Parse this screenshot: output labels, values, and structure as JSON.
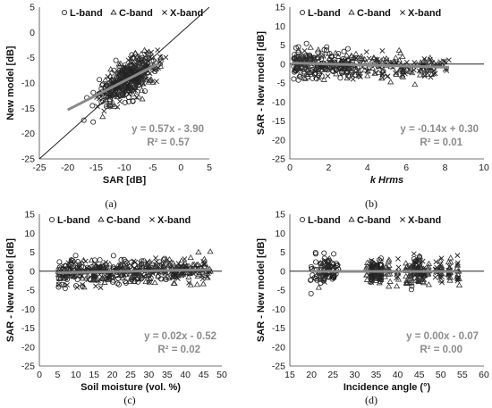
{
  "chart_data": [
    {
      "id": "a",
      "type": "scatter",
      "panel_label": "(a)",
      "xlabel": "SAR [dB]",
      "ylabel": "New model [dB]",
      "xlim": [
        -25,
        5
      ],
      "ylim": [
        -25,
        5
      ],
      "xticks": [
        -25,
        -20,
        -15,
        -10,
        -5,
        0,
        5
      ],
      "yticks": [
        -25,
        -20,
        -15,
        -10,
        -5,
        0,
        5
      ],
      "x_zero_line": false,
      "one_to_one_line": true,
      "legend": [
        "L-band",
        "C-band",
        "X-band"
      ],
      "legend_position": "top-right",
      "equation": "y = 0.57x - 3.90",
      "r_squared": "R² = 0.57",
      "trendline": {
        "slope": 0.57,
        "intercept": -3.9,
        "x_range": [
          -20,
          -4
        ]
      },
      "series": [
        {
          "name": "L-band",
          "marker": "circle",
          "x_center": -10,
          "x_spread": 5,
          "y_slope": 0.57,
          "y_intercept": -3.9,
          "noise": 2.0,
          "x_min": -21,
          "x_max": -3,
          "count": 150
        },
        {
          "name": "C-band",
          "marker": "triangle",
          "x_center": -9,
          "x_spread": 4.5,
          "y_slope": 0.57,
          "y_intercept": -3.9,
          "noise": 1.9,
          "x_min": -20,
          "x_max": -2,
          "count": 190
        },
        {
          "name": "X-band",
          "marker": "cross",
          "x_center": -9,
          "x_spread": 4.5,
          "y_slope": 0.57,
          "y_intercept": -3.9,
          "noise": 1.9,
          "x_min": -20,
          "x_max": -2,
          "count": 110
        }
      ]
    },
    {
      "id": "b",
      "type": "scatter",
      "panel_label": "(b)",
      "xlabel": "k Hrms",
      "xlabel_italic": true,
      "ylabel": "SAR - New model [dB]",
      "xlim": [
        0,
        10
      ],
      "ylim": [
        -25,
        15
      ],
      "xticks": [
        0,
        2,
        4,
        6,
        8,
        10
      ],
      "yticks": [
        -25,
        -20,
        -15,
        -10,
        -5,
        0,
        5,
        10,
        15
      ],
      "x_zero_line": true,
      "legend": [
        "L-band",
        "C-band",
        "X-band"
      ],
      "legend_position": "top-right",
      "equation": "y = -0.14x + 0.30",
      "r_squared": "R² = 0.01",
      "trendline": {
        "slope": -0.14,
        "intercept": 0.3,
        "x_range": [
          0.1,
          8.2
        ]
      },
      "series": [
        {
          "name": "L-band",
          "marker": "circle",
          "x_min": 0.2,
          "x_max": 3.5,
          "skew": 1.6,
          "slope": -0.14,
          "intercept": 0.3,
          "noise": 2.2,
          "count": 150
        },
        {
          "name": "C-band",
          "marker": "triangle",
          "x_min": 0.3,
          "x_max": 7.5,
          "skew": 1.2,
          "slope": -0.14,
          "intercept": 0.3,
          "noise": 2.2,
          "count": 170
        },
        {
          "name": "X-band",
          "marker": "cross",
          "x_min": 0.5,
          "x_max": 8.2,
          "skew": 0.9,
          "slope": -0.14,
          "intercept": 0.3,
          "noise": 2.0,
          "count": 90
        }
      ]
    },
    {
      "id": "c",
      "type": "scatter",
      "panel_label": "(c)",
      "xlabel": "Soil moisture (vol. %)",
      "ylabel": "SAR - New model [dB]",
      "xlim": [
        0,
        50
      ],
      "ylim": [
        -25,
        15
      ],
      "xticks": [
        0,
        5,
        10,
        15,
        20,
        25,
        30,
        35,
        40,
        45,
        50
      ],
      "yticks": [
        -25,
        -20,
        -15,
        -10,
        -5,
        0,
        5,
        10,
        15
      ],
      "x_zero_line": true,
      "legend": [
        "L-band",
        "C-band",
        "X-band"
      ],
      "legend_position": "top-right",
      "equation": "y = 0.02x - 0.52",
      "r_squared": "R² = 0.02",
      "trendline": {
        "slope": 0.02,
        "intercept": -0.52,
        "x_range": [
          5,
          47
        ]
      },
      "series": [
        {
          "name": "L-band",
          "marker": "circle",
          "x_min": 5,
          "x_max": 35,
          "skew": 1.0,
          "slope": 0.02,
          "intercept": -0.52,
          "noise": 2.0,
          "count": 160
        },
        {
          "name": "C-band",
          "marker": "triangle",
          "x_min": 5,
          "x_max": 47,
          "skew": 1.0,
          "slope": 0.02,
          "intercept": -0.52,
          "noise": 2.0,
          "count": 200
        },
        {
          "name": "X-band",
          "marker": "cross",
          "x_min": 5,
          "x_max": 47,
          "skew": 1.0,
          "slope": 0.02,
          "intercept": -0.52,
          "noise": 1.9,
          "count": 120
        }
      ]
    },
    {
      "id": "d",
      "type": "scatter",
      "panel_label": "(d)",
      "xlabel": "Incidence angle (°)",
      "ylabel": "SAR - New model [dB]",
      "xlim": [
        15,
        60
      ],
      "ylim": [
        -25,
        15
      ],
      "xticks": [
        15,
        20,
        25,
        30,
        35,
        40,
        45,
        50,
        55,
        60
      ],
      "yticks": [
        -25,
        -20,
        -15,
        -10,
        -5,
        0,
        5,
        10,
        15
      ],
      "x_zero_line": true,
      "legend": [
        "L-band",
        "C-band",
        "X-band"
      ],
      "legend_position": "top-right",
      "equation": "y = 0.00x - 0.07",
      "r_squared": "R² = 0.00",
      "trendline": {
        "slope": 0.0,
        "intercept": -0.07,
        "x_range": [
          20,
          54
        ]
      },
      "angle_columns": [
        20,
        21,
        22,
        23,
        24,
        25,
        26,
        33,
        34,
        35,
        36,
        37,
        38,
        40,
        42,
        43,
        44,
        45,
        46,
        47,
        49,
        50,
        52,
        54
      ],
      "series": [
        {
          "name": "L-band",
          "marker": "circle",
          "columns": [
            20,
            21,
            22,
            23,
            24,
            25,
            26,
            34,
            35,
            36,
            43,
            44,
            45
          ],
          "noise": 2.2,
          "count": 140
        },
        {
          "name": "C-band",
          "marker": "triangle",
          "columns": [
            22,
            23,
            24,
            33,
            34,
            35,
            36,
            37,
            38,
            40,
            42,
            43,
            44,
            45,
            46,
            47,
            50,
            52,
            54
          ],
          "noise": 2.1,
          "count": 180
        },
        {
          "name": "X-band",
          "marker": "cross",
          "columns": [
            23,
            24,
            25,
            34,
            35,
            36,
            40,
            44,
            45,
            46,
            49,
            50,
            52,
            54
          ],
          "noise": 1.9,
          "count": 110
        }
      ]
    }
  ]
}
